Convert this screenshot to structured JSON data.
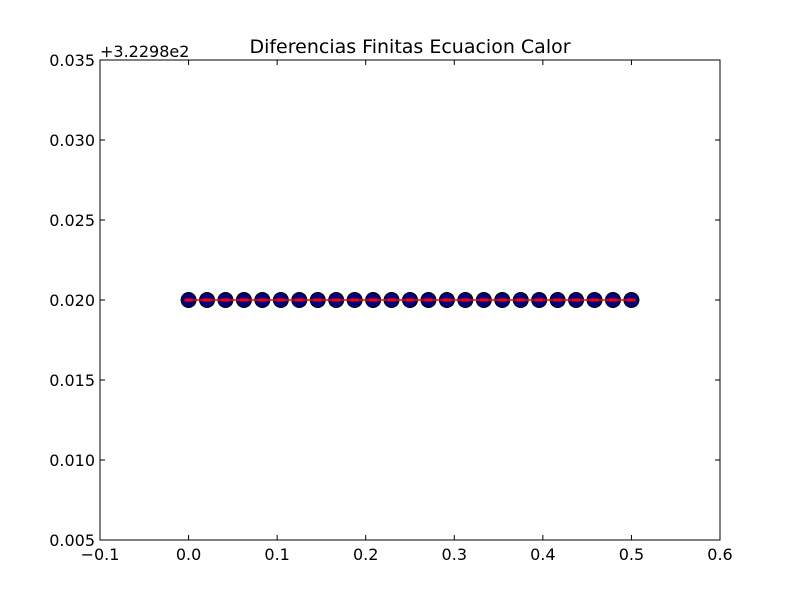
{
  "chart_data": {
    "type": "line",
    "title": "Diferencias Finitas Ecuacion Calor",
    "y_offset_label": "+3.2298e2",
    "xlim": [
      -0.1,
      0.6
    ],
    "ylim": [
      0.005,
      0.035
    ],
    "xticks": [
      "−0.1",
      "0.0",
      "0.1",
      "0.2",
      "0.3",
      "0.4",
      "0.5",
      "0.6"
    ],
    "yticks": [
      "0.005",
      "0.010",
      "0.015",
      "0.020",
      "0.025",
      "0.030",
      "0.035"
    ],
    "xtick_values": [
      -0.1,
      0.0,
      0.1,
      0.2,
      0.3,
      0.4,
      0.5,
      0.6
    ],
    "ytick_values": [
      0.005,
      0.01,
      0.015,
      0.02,
      0.025,
      0.03,
      0.035
    ],
    "grid": false,
    "series": [
      {
        "style": "line with markers",
        "line_color": "#ff0000",
        "marker_face": "#000080",
        "marker_edge": "#000000",
        "x": [
          0.0,
          0.020833,
          0.041667,
          0.0625,
          0.083333,
          0.104167,
          0.125,
          0.145833,
          0.166667,
          0.1875,
          0.208333,
          0.229167,
          0.25,
          0.270833,
          0.291667,
          0.3125,
          0.333333,
          0.354167,
          0.375,
          0.395833,
          0.416667,
          0.4375,
          0.458333,
          0.479167,
          0.5
        ],
        "y": [
          0.02,
          0.02,
          0.02,
          0.02,
          0.02,
          0.02,
          0.02,
          0.02,
          0.02,
          0.02,
          0.02,
          0.02,
          0.02,
          0.02,
          0.02,
          0.02,
          0.02,
          0.02,
          0.02,
          0.02,
          0.02,
          0.02,
          0.02,
          0.02,
          0.02
        ]
      }
    ]
  }
}
